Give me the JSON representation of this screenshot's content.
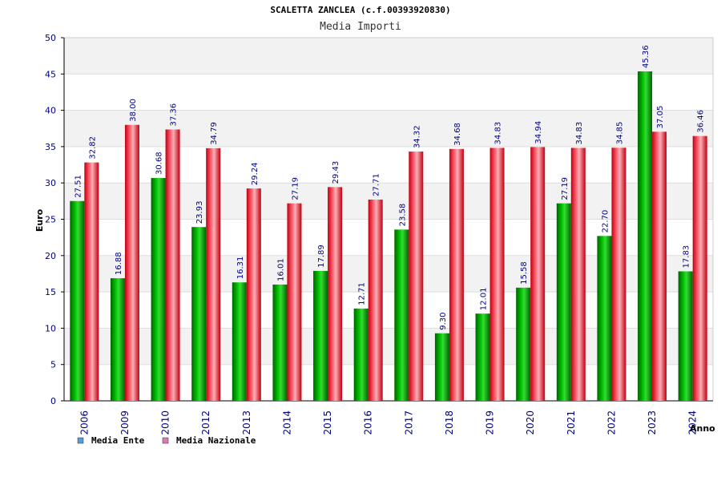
{
  "chart_data": {
    "type": "bar",
    "title": "SCALETTA ZANCLEA (c.f.00393920830)",
    "subtitle": "Media Importi",
    "xlabel": "Anno",
    "ylabel": "Euro",
    "ylim": [
      0,
      50
    ],
    "yticks": [
      "0",
      "5",
      "10",
      "15",
      "20",
      "25",
      "30",
      "35",
      "40",
      "45",
      "50"
    ],
    "grid": true,
    "legend_position": "bottom-left",
    "categories": [
      "2006",
      "2009",
      "2010",
      "2012",
      "2013",
      "2014",
      "2015",
      "2016",
      "2017",
      "2018",
      "2019",
      "2020",
      "2021",
      "2022",
      "2023",
      "2024"
    ],
    "series": [
      {
        "name": "Media Ente",
        "color": "#00a000",
        "legend_color": "#5b9bd5",
        "values": [
          27.51,
          16.88,
          30.68,
          23.93,
          16.31,
          16.01,
          17.89,
          12.71,
          23.58,
          9.3,
          12.01,
          15.58,
          27.19,
          22.7,
          45.36,
          17.83
        ],
        "labels": [
          "27.51",
          "16.88",
          "30.68",
          "23.93",
          "16.31",
          "16.01",
          "17.89",
          "12.71",
          "23.58",
          "9.30",
          "12.01",
          "15.58",
          "27.19",
          "22.70",
          "45.36",
          "17.83"
        ]
      },
      {
        "name": "Media Nazionale",
        "color": "#e0202a",
        "legend_color": "#d97ab0",
        "values": [
          32.82,
          38.0,
          37.36,
          34.79,
          29.24,
          27.19,
          29.43,
          27.71,
          34.32,
          34.68,
          34.83,
          34.94,
          34.83,
          34.85,
          37.05,
          36.46
        ],
        "labels": [
          "32.82",
          "38.00",
          "37.36",
          "34.79",
          "29.24",
          "27.19",
          "29.43",
          "27.71",
          "34.32",
          "34.68",
          "34.83",
          "34.94",
          "34.83",
          "34.85",
          "37.05",
          "36.46"
        ]
      }
    ]
  }
}
